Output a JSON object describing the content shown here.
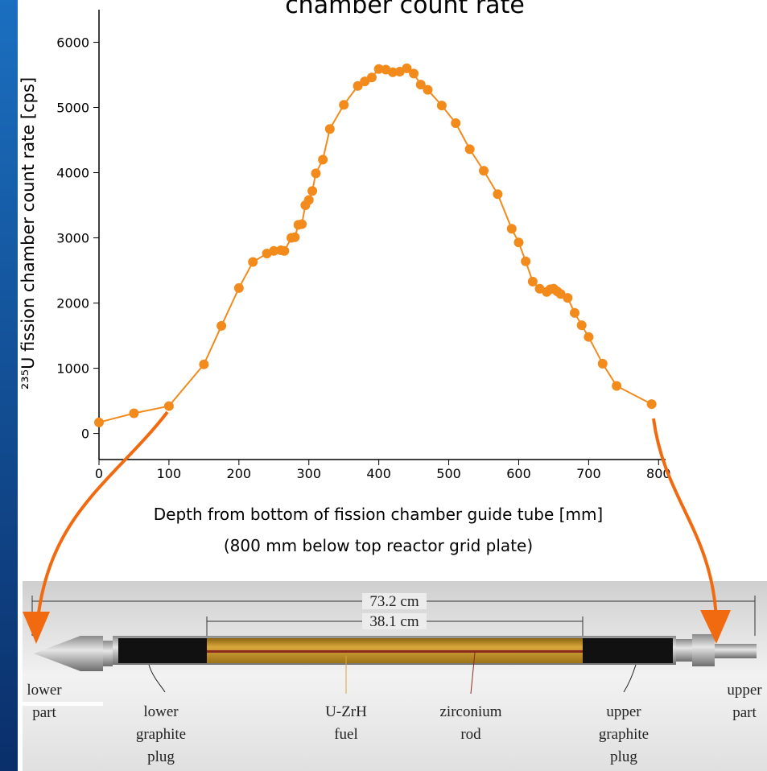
{
  "chart_data": {
    "type": "line",
    "title": "chamber count rate",
    "x_label": [
      "Depth from bottom of fission chamber guide tube [mm]",
      "(800 mm below top reactor grid plate)"
    ],
    "y_label": "²³⁵U fission chamber count rate [cps]",
    "color": "#f28a1c",
    "x": [
      0,
      50,
      100,
      150,
      175,
      200,
      220,
      240,
      250,
      260,
      265,
      275,
      280,
      285,
      290,
      295,
      300,
      305,
      310,
      320,
      330,
      350,
      370,
      380,
      390,
      400,
      410,
      420,
      430,
      440,
      450,
      460,
      470,
      490,
      510,
      530,
      550,
      570,
      590,
      600,
      610,
      620,
      630,
      640,
      645,
      650,
      655,
      660,
      670,
      680,
      690,
      700,
      720,
      740,
      790
    ],
    "values": [
      170,
      310,
      420,
      1060,
      1650,
      2230,
      2630,
      2760,
      2800,
      2810,
      2800,
      3000,
      3010,
      3200,
      3210,
      3500,
      3580,
      3720,
      3990,
      4200,
      4670,
      5040,
      5330,
      5400,
      5460,
      5590,
      5580,
      5540,
      5550,
      5600,
      5520,
      5350,
      5270,
      5030,
      4760,
      4360,
      4030,
      3670,
      3140,
      2930,
      2640,
      2330,
      2220,
      2170,
      2210,
      2220,
      2180,
      2140,
      2080,
      1850,
      1660,
      1480,
      1070,
      730,
      450
    ],
    "xlim": [
      0,
      810
    ],
    "ylim": [
      -400,
      6500
    ],
    "xticks": [
      0,
      100,
      200,
      300,
      400,
      500,
      600,
      700,
      800
    ],
    "yticks": [
      0,
      1000,
      2000,
      3000,
      4000,
      5000,
      6000
    ]
  },
  "diagram": {
    "dimensions": [
      "73.2 cm",
      "38.1 cm"
    ],
    "labels": [
      [
        "lower",
        "part"
      ],
      [
        "lower",
        "graphite",
        "plug"
      ],
      [
        "U-ZrH",
        "fuel"
      ],
      [
        "zirconium",
        "rod"
      ],
      [
        "upper",
        "graphite",
        "plug"
      ],
      [
        "upper",
        "part"
      ]
    ]
  }
}
